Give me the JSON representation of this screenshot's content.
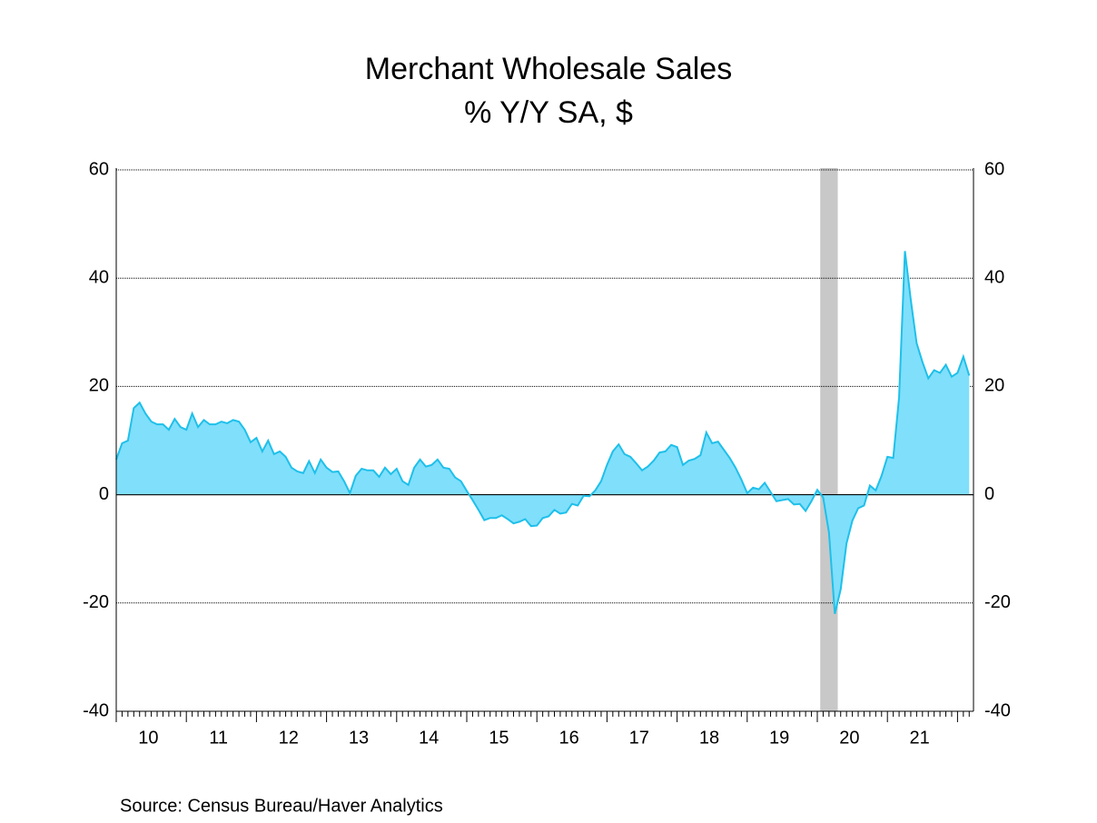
{
  "chart_data": {
    "type": "area",
    "title": "Merchant Wholesale Sales",
    "subtitle": "% Y/Y   SA, $",
    "source": "Source:  Census Bureau/Haver Analytics",
    "categories": [
      null,
      null,
      null,
      null,
      null,
      null,
      "10",
      null,
      null,
      null,
      null,
      null,
      null,
      null,
      null,
      null,
      null,
      null,
      "11",
      null,
      null,
      null,
      null,
      null,
      null,
      null,
      null,
      null,
      null,
      null,
      "12",
      null,
      null,
      null,
      null,
      null,
      null,
      null,
      null,
      null,
      null,
      null,
      "13",
      null,
      null,
      null,
      null,
      null,
      null,
      null,
      null,
      null,
      null,
      null,
      "14",
      null,
      null,
      null,
      null,
      null,
      null,
      null,
      null,
      null,
      null,
      null,
      "15",
      null,
      null,
      null,
      null,
      null,
      null,
      null,
      null,
      null,
      null,
      null,
      "16",
      null,
      null,
      null,
      null,
      null,
      null,
      null,
      null,
      null,
      null,
      null,
      "17",
      null,
      null,
      null,
      null,
      null,
      null,
      null,
      null,
      null,
      null,
      null,
      "18",
      null,
      null,
      null,
      null,
      null,
      null,
      null,
      null,
      null,
      null,
      null,
      "19",
      null,
      null,
      null,
      null,
      null,
      null,
      null,
      null,
      null,
      null,
      null,
      "20",
      null,
      null,
      null,
      null,
      null,
      null,
      null,
      null,
      null,
      null,
      null,
      "21",
      null,
      null,
      null,
      null,
      null,
      null,
      null,
      null
    ],
    "values": [
      6.5,
      9.5,
      10,
      16,
      17,
      15,
      13.5,
      13,
      13,
      12,
      14,
      12.5,
      12,
      15,
      12.5,
      13.8,
      13,
      13,
      13.5,
      13.2,
      13.8,
      13.5,
      12,
      9.7,
      10.5,
      8,
      10,
      7.5,
      8,
      7,
      5,
      4.3,
      4,
      6.2,
      4,
      6.5,
      5,
      4.2,
      4.3,
      2.5,
      0.3,
      3.5,
      4.8,
      4.5,
      4.5,
      3.3,
      5,
      3.8,
      4.8,
      2.5,
      1.8,
      5,
      6.5,
      5.2,
      5.5,
      6.5,
      5,
      4.8,
      3.2,
      2.5,
      0.7,
      -1,
      -2.8,
      -4.7,
      -4.3,
      -4.3,
      -3.8,
      -4.5,
      -5.3,
      -5,
      -4.5,
      -5.8,
      -5.7,
      -4.3,
      -4,
      -2.8,
      -3.5,
      -3.3,
      -1.7,
      -2,
      -0.2,
      -0.3,
      0.8,
      2.5,
      5.5,
      8,
      9.3,
      7.5,
      7,
      5.8,
      4.5,
      5.2,
      6.3,
      7.8,
      8,
      9.2,
      8.8,
      5.5,
      6.3,
      6.6,
      7.3,
      11.5,
      9.5,
      9.8,
      8.3,
      6.8,
      5,
      2.8,
      0.3,
      1.3,
      1,
      2.2,
      0.5,
      -1.2,
      -1,
      -0.8,
      -1.8,
      -1.7,
      -3,
      -1.2,
      0.9,
      -0.5,
      -7,
      -22,
      -17.5,
      -9,
      -4.8,
      -2.5,
      -2,
      1.7,
      0.8,
      3.5,
      7,
      6.8,
      18,
      45,
      36,
      28,
      24.5,
      21.5,
      23,
      22.5,
      24,
      21.8,
      22.5,
      25.5,
      22
    ],
    "color": "#1ec0ea",
    "fill": "#80dffb",
    "shaded_periods": [
      {
        "start": 121,
        "end": 123,
        "color": "#c8c8c8"
      }
    ],
    "ylim": [
      -40,
      60
    ],
    "yticks": [
      -40,
      -20,
      0,
      20,
      40,
      60
    ],
    "grid": true
  }
}
